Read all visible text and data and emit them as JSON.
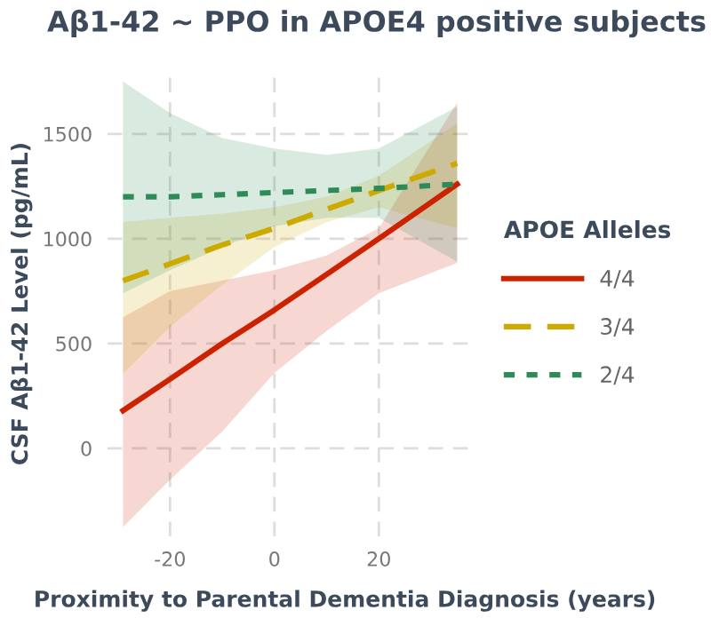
{
  "chart_data": {
    "type": "line",
    "title": "Aβ1-42 ~ PPO in APOE4 positive subjects",
    "xlabel": "Proximity to Parental Dementia Diagnosis (years)",
    "ylabel": "CSF Aβ1-42 Level (pg/mL)",
    "legend_title": "APOE Alleles",
    "legend": "right",
    "grid": true,
    "x": [
      -29,
      -20,
      -10,
      0,
      10,
      20,
      35
    ],
    "series": [
      {
        "name": "4/4",
        "color": "#cc2200",
        "line_style": "solid",
        "values": [
          180,
          330,
          500,
          660,
          830,
          1000,
          1260
        ],
        "lower": [
          -375,
          -150,
          80,
          360,
          560,
          740,
          885
        ],
        "upper": [
          625,
          750,
          800,
          850,
          920,
          1050,
          1650
        ]
      },
      {
        "name": "3/4",
        "color": "#ccaa00",
        "line_style": "dashed",
        "values": [
          800,
          880,
          970,
          1050,
          1140,
          1230,
          1360
        ],
        "lower": [
          355,
          580,
          780,
          960,
          1080,
          1150,
          1050
        ],
        "upper": [
          1080,
          1100,
          1120,
          1150,
          1200,
          1300,
          1550
        ]
      },
      {
        "name": "2/4",
        "color": "#2e8b57",
        "line_style": "dotted",
        "values": [
          1200,
          1200,
          1210,
          1220,
          1230,
          1240,
          1260
        ],
        "lower": [
          740,
          850,
          960,
          1060,
          1100,
          1100,
          890
        ],
        "upper": [
          1750,
          1600,
          1480,
          1430,
          1400,
          1430,
          1630
        ]
      }
    ],
    "xlim": [
      -32,
      38
    ],
    "ylim": [
      -420,
      1800
    ],
    "xticks": [
      -20,
      0,
      20
    ],
    "yticks": [
      0,
      500,
      1000,
      1500
    ]
  }
}
